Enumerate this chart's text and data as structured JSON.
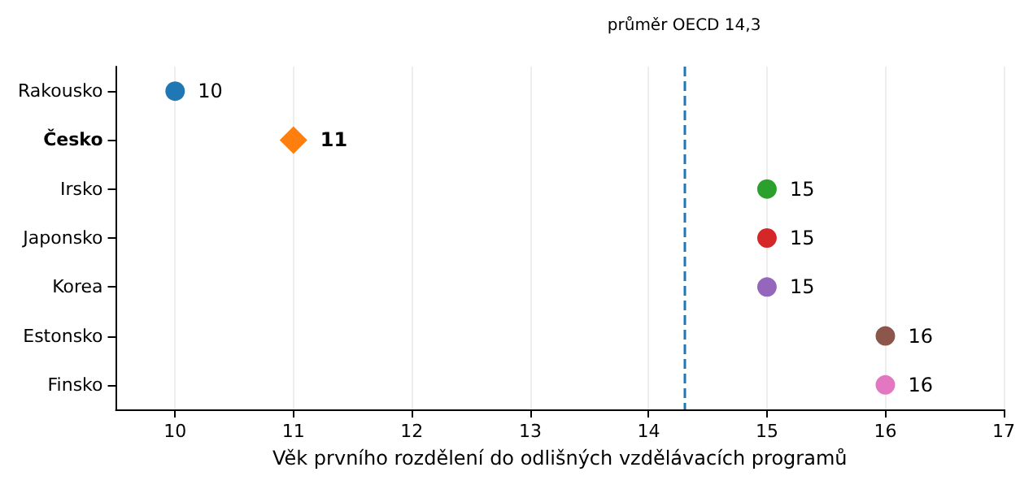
{
  "chart_data": {
    "type": "scatter",
    "orientation": "horizontal",
    "categories": [
      "Rakousko",
      "Česko",
      "Irsko",
      "Japonsko",
      "Korea",
      "Estonsko",
      "Finsko"
    ],
    "series": [
      {
        "marker": "circle",
        "values": [
          10,
          null,
          15,
          15,
          15,
          16,
          16
        ],
        "colors": [
          "#1f77b4",
          null,
          "#2ca02c",
          "#d62728",
          "#9467bd",
          "#8c564b",
          "#e377c2"
        ]
      },
      {
        "marker": "diamond",
        "values": [
          null,
          11,
          null,
          null,
          null,
          null,
          null
        ],
        "colors": [
          null,
          "#ff7f0e",
          null,
          null,
          null,
          null,
          null
        ]
      }
    ],
    "xlabel": "Věk prvního rozdělení do odlišných vzdělávacích programů",
    "xlim": [
      9.5,
      17
    ],
    "xticks": [
      10,
      11,
      12,
      13,
      14,
      15,
      16,
      17
    ],
    "grid": "x",
    "data_labels": true,
    "ref_lines": [
      {
        "axis": "x",
        "value": 14.3,
        "label": "průměr OECD 14,3",
        "color": "#1f77b4",
        "line_style": "dashed"
      }
    ]
  }
}
